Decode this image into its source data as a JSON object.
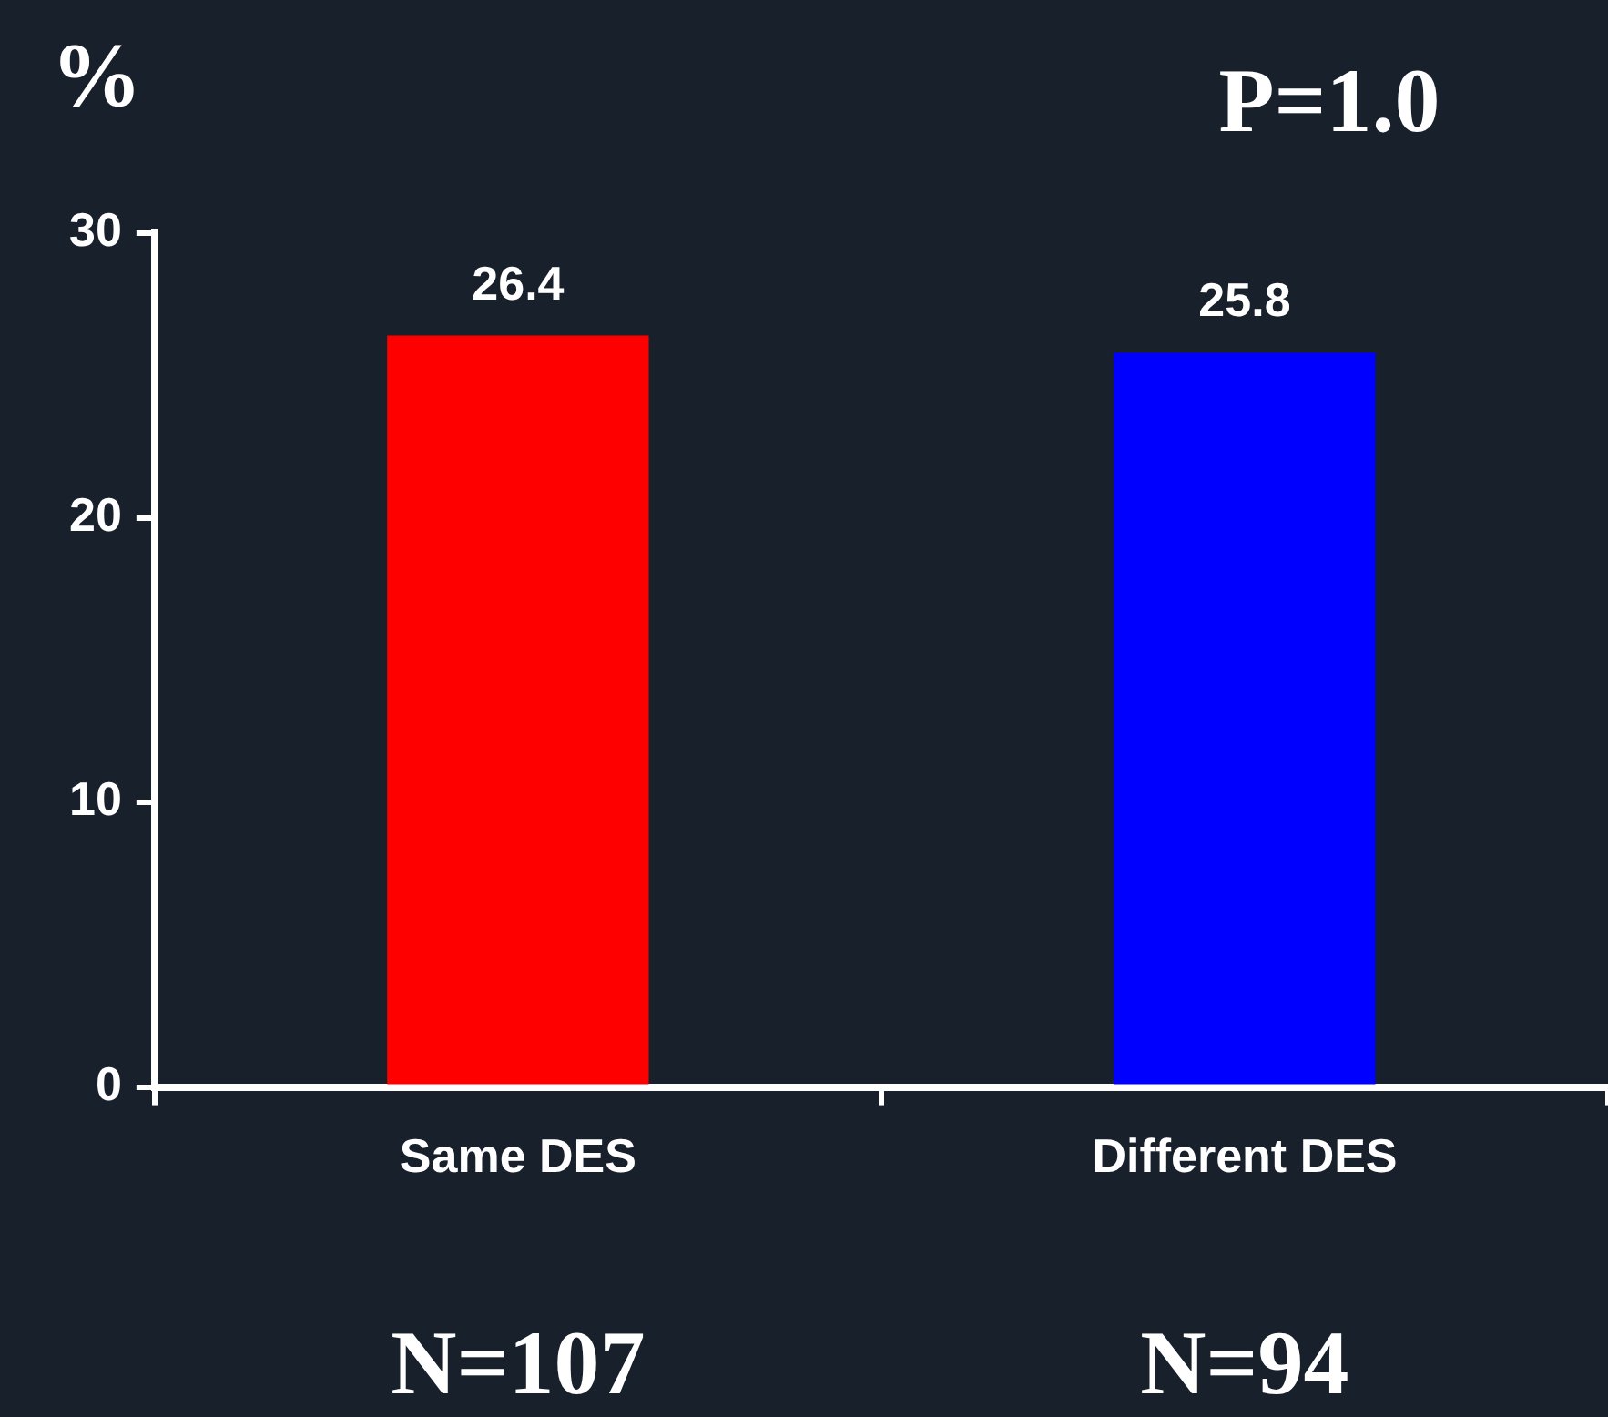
{
  "chart_data": {
    "type": "bar",
    "title": "P=1.0",
    "ylabel": "%",
    "categories": [
      "Same DES",
      "Different DES"
    ],
    "values": [
      26.4,
      25.8
    ],
    "colors": [
      "#ff0000",
      "#0000ff"
    ],
    "ylim": [
      0,
      30
    ],
    "yticks": [
      0,
      10,
      20,
      30
    ],
    "grid": false,
    "legend": false,
    "data_labels": true,
    "annotations": [
      "N=107",
      "N=94"
    ]
  }
}
